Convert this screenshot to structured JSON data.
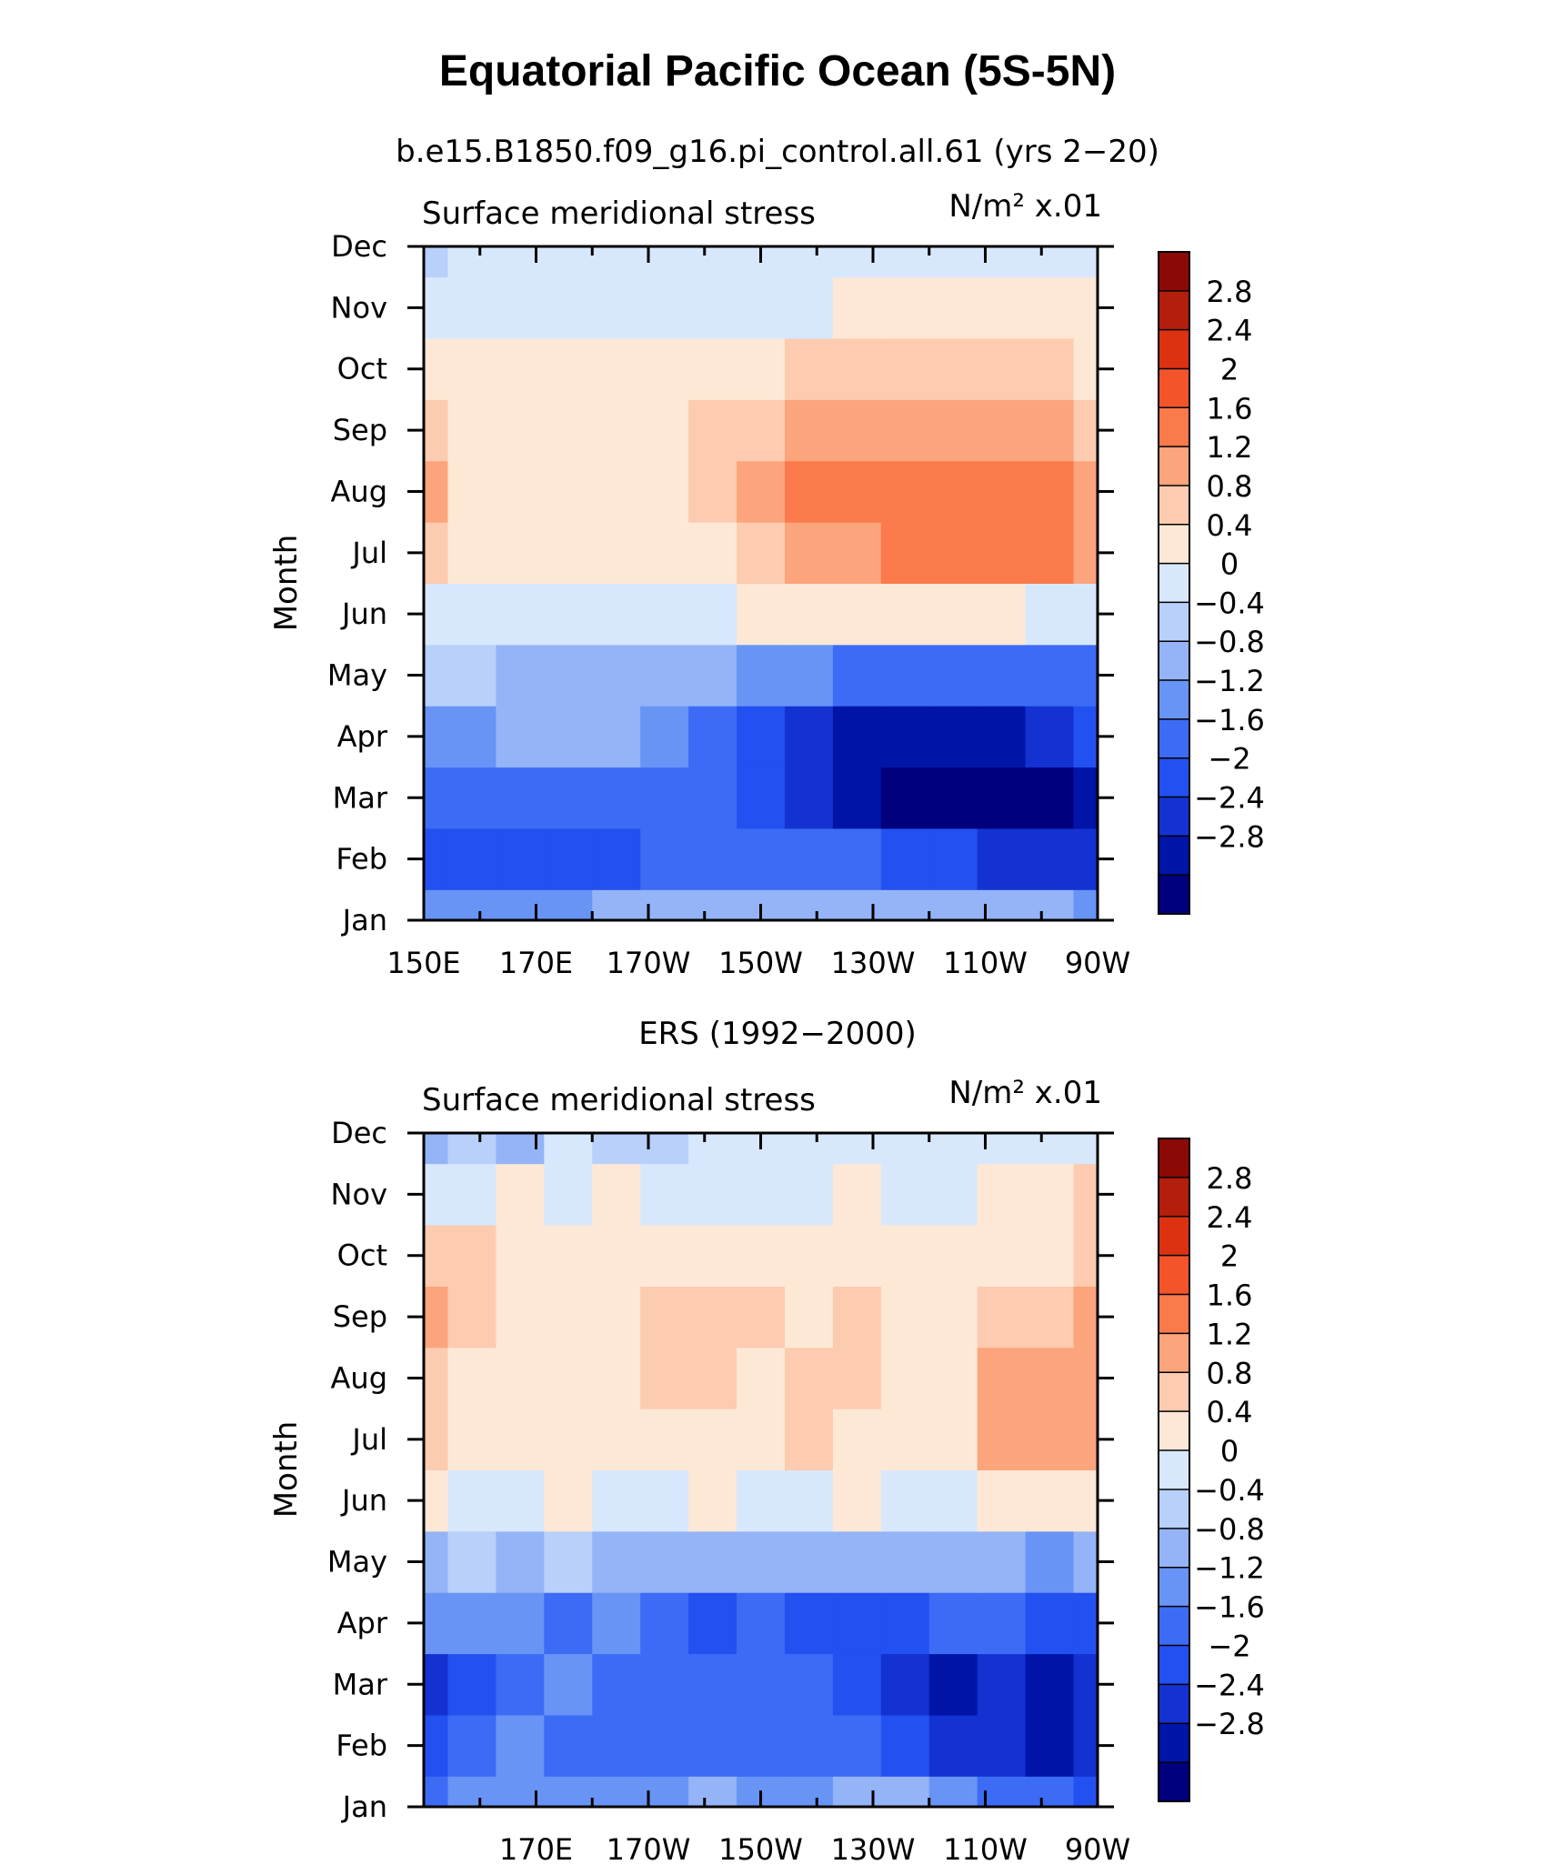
{
  "title": "Equatorial Pacific Ocean (5S-5N)",
  "chart_data": [
    {
      "type": "heatmap",
      "subtitle": "b.e15.B1850.f09_g16.pi_control.all.61 (yrs 2−20)",
      "left_label": "Surface meridional stress",
      "units": "N/m² x.01",
      "ylabel": "Month",
      "months": [
        "Jan",
        "Feb",
        "Mar",
        "Apr",
        "May",
        "Jun",
        "Jul",
        "Aug",
        "Sep",
        "Oct",
        "Nov",
        "Dec"
      ],
      "lon_ticks": [
        "150E",
        "170E",
        "170W",
        "150W",
        "130W",
        "110W",
        "90W"
      ],
      "lon_range": [
        150,
        270
      ],
      "values": [
        [
          -0.8,
          -0.8,
          -0.8,
          -0.8,
          -0.4,
          -0.4,
          -0.4,
          -0.4,
          -0.4,
          -0.4,
          -0.4,
          -0.4,
          -0.4,
          -0.4,
          -0.8
        ],
        [
          -1.8,
          -1.6,
          -1.6,
          -1.6,
          -1.6,
          -1.2,
          -1.2,
          -1.2,
          -1.2,
          -1.2,
          -1.6,
          -1.8,
          -2.0,
          -2.0,
          -2.0
        ],
        [
          -1.4,
          -1.2,
          -1.2,
          -1.2,
          -1.2,
          -1.2,
          -1.2,
          -1.6,
          -2.0,
          -2.4,
          -2.8,
          -3.0,
          -3.2,
          -3.0,
          -2.6
        ],
        [
          -0.8,
          -0.8,
          -0.4,
          -0.4,
          -0.4,
          -0.8,
          -1.2,
          -1.6,
          -2.0,
          -2.4,
          -2.6,
          -2.6,
          -2.4,
          -2.2,
          -1.8
        ],
        [
          -0.2,
          -0.2,
          -0.4,
          -0.4,
          -0.4,
          -0.4,
          -0.4,
          -0.8,
          -1.0,
          -1.2,
          -1.2,
          -1.2,
          -1.2,
          -1.2,
          -1.2
        ],
        [
          0.4,
          0.2,
          0.2,
          0.2,
          0.2,
          0.2,
          0.4,
          0.6,
          0.8,
          0.8,
          0.8,
          0.8,
          0.6,
          0.4,
          0.4
        ],
        [
          1.0,
          0.8,
          0.6,
          0.5,
          0.5,
          0.6,
          0.8,
          1.0,
          1.4,
          1.6,
          1.9,
          2.0,
          2.0,
          2.0,
          1.6
        ],
        [
          1.4,
          0.8,
          0.6,
          0.6,
          0.6,
          0.8,
          1.0,
          1.4,
          1.8,
          1.8,
          1.9,
          2.0,
          2.0,
          1.8,
          1.4
        ],
        [
          1.2,
          0.8,
          0.6,
          0.6,
          0.8,
          0.8,
          1.0,
          1.2,
          1.4,
          1.4,
          1.6,
          1.6,
          1.6,
          1.4,
          1.2
        ],
        [
          0.8,
          0.8,
          0.6,
          0.6,
          0.6,
          0.6,
          0.8,
          0.8,
          1.0,
          1.0,
          1.0,
          1.2,
          1.2,
          1.0,
          0.8
        ],
        [
          0.4,
          0.4,
          0.4,
          0.4,
          0.4,
          0.4,
          0.4,
          0.4,
          0.4,
          0.6,
          0.6,
          0.6,
          0.8,
          0.8,
          0.6
        ],
        [
          -0.2,
          0.2,
          0.2,
          0.2,
          0.2,
          0.2,
          0.2,
          0.2,
          0.2,
          0.2,
          0.2,
          0.4,
          0.4,
          0.4,
          0.4
        ]
      ]
    },
    {
      "type": "heatmap",
      "subtitle": "ERS (1992−2000)",
      "left_label": "Surface meridional stress",
      "units": "N/m² x.01",
      "ylabel": "Month",
      "months": [
        "Jan",
        "Feb",
        "Mar",
        "Apr",
        "May",
        "Jun",
        "Jul",
        "Aug",
        "Sep",
        "Oct",
        "Nov",
        "Dec"
      ],
      "lon_ticks": [
        "170E",
        "170W",
        "150W",
        "130W",
        "110W",
        "90W"
      ],
      "lon_range": [
        150,
        270
      ],
      "values": [
        [
          -1.2,
          -1.0,
          -0.8,
          -1.0,
          -0.8,
          -0.8,
          -0.4,
          -0.8,
          -0.8,
          -0.4,
          -0.4,
          -0.8,
          -1.2,
          -1.2,
          -1.6
        ],
        [
          -1.6,
          -1.4,
          -0.8,
          -1.2,
          -1.2,
          -1.2,
          -1.2,
          -1.2,
          -1.2,
          -1.4,
          -1.6,
          -2.0,
          -2.0,
          -2.4,
          -2.2
        ],
        [
          -2.0,
          -1.8,
          -1.2,
          -1.0,
          -1.2,
          -1.2,
          -1.2,
          -1.2,
          -1.4,
          -1.8,
          -2.0,
          -2.4,
          -2.2,
          -2.4,
          -2.2
        ],
        [
          -1.0,
          -1.0,
          -1.0,
          -1.2,
          -1.0,
          -1.4,
          -1.6,
          -1.4,
          -1.6,
          -1.6,
          -1.6,
          -1.4,
          -1.4,
          -1.6,
          -1.6
        ],
        [
          -0.4,
          -0.2,
          -0.4,
          -0.2,
          -0.4,
          -0.4,
          -0.4,
          -0.6,
          -0.4,
          -0.4,
          -0.4,
          -0.4,
          -0.6,
          -0.8,
          -0.6
        ],
        [
          0.6,
          0.4,
          0.4,
          0.6,
          0.2,
          0.4,
          0.6,
          0.4,
          0.4,
          0.6,
          0.4,
          0.4,
          0.6,
          0.6,
          0.8
        ],
        [
          1.0,
          0.8,
          0.6,
          0.8,
          0.6,
          0.8,
          0.8,
          0.8,
          1.0,
          0.8,
          0.8,
          0.8,
          1.4,
          1.4,
          1.6
        ],
        [
          1.2,
          0.8,
          0.6,
          0.8,
          0.8,
          1.0,
          1.0,
          0.8,
          1.0,
          1.0,
          0.8,
          0.8,
          1.4,
          1.6,
          1.6
        ],
        [
          1.4,
          1.0,
          0.8,
          0.6,
          0.8,
          1.0,
          1.0,
          1.0,
          0.8,
          1.0,
          0.8,
          0.8,
          1.0,
          1.2,
          1.4
        ],
        [
          1.0,
          1.0,
          0.8,
          0.6,
          0.6,
          0.8,
          0.6,
          0.8,
          0.8,
          0.8,
          0.6,
          0.6,
          0.8,
          0.8,
          1.2
        ],
        [
          0.4,
          0.4,
          0.6,
          0.4,
          0.6,
          0.4,
          0.4,
          0.4,
          0.4,
          0.6,
          0.4,
          0.4,
          0.8,
          0.6,
          1.0
        ],
        [
          -0.4,
          -0.2,
          -0.4,
          0.2,
          -0.2,
          -0.2,
          0.2,
          0.2,
          0.2,
          0.4,
          0.2,
          0.4,
          0.4,
          0.2,
          0.4
        ]
      ]
    }
  ],
  "colorbar": {
    "labels": [
      "2.8",
      "2.4",
      "2",
      "1.6",
      "1.2",
      "0.8",
      "0.4",
      "0",
      "−0.4",
      "−0.8",
      "−1.2",
      "−1.6",
      "−2",
      "−2.4",
      "−2.8"
    ],
    "thresholds": [
      -2.8,
      -2.4,
      -2.0,
      -1.6,
      -1.2,
      -0.8,
      -0.4,
      0,
      0.4,
      0.8,
      1.2,
      1.6,
      2.0,
      2.4,
      2.8
    ],
    "colors": [
      "#00007f",
      "#0014a8",
      "#1432d2",
      "#2350f0",
      "#3c6cf5",
      "#6894f6",
      "#94b4f7",
      "#b8d0fa",
      "#d8e8fc",
      "#fde8d6",
      "#fccbb0",
      "#fca47c",
      "#fa7a4c",
      "#f4542a",
      "#dc3212",
      "#b41e0c",
      "#8c0a06"
    ]
  }
}
